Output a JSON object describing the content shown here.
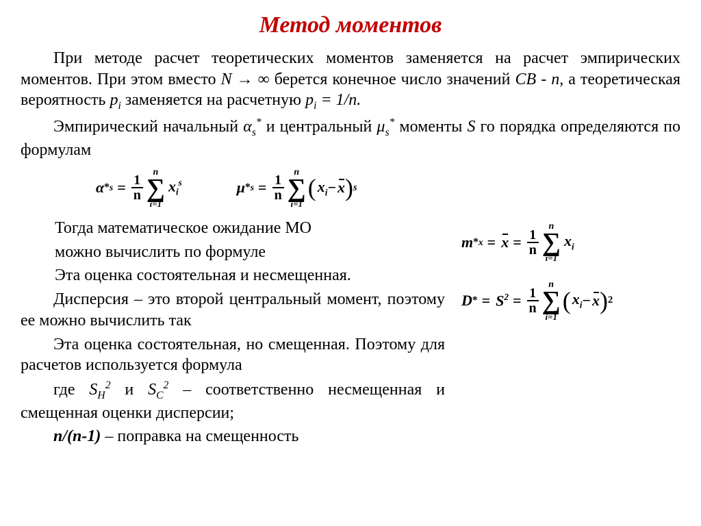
{
  "title": "Метод  моментов",
  "title_color": "#c00000",
  "text_color": "#000000",
  "background_color": "#ffffff",
  "font_family": "Times New Roman",
  "body_fontsize": 24,
  "title_fontsize": 34,
  "paragraphs": {
    "p1_prefix": "При методе расчет теоретических моментов заменяется на расчет эмпирических моментов. При этом вместо ",
    "p1_var_N": "N",
    "p1_arrow_inf": " → ∞ ",
    "p1_mid": "берется конечное число значений ",
    "p1_CB": "СВ  - n",
    "p1_mid2": ", а теоретическая вероятность ",
    "p1_pi": "p",
    "p1_pi_sub": "i",
    "p1_mid3": " заменяется на расчетную ",
    "p1_pi2": "p",
    "p1_pi2_sub": "i",
    "p1_eq": " = 1/n.",
    "p2_prefix": "Эмпирический начальный ",
    "p2_alpha": "α",
    "p2_alpha_sub": "s",
    "p2_alpha_sup": "*",
    "p2_mid": "  и центральный ",
    "p2_mu": "μ",
    "p2_mu_sub": "s",
    "p2_mu_sup": "*",
    "p2_end": " моменты ",
    "p2_S": "S",
    "p2_tail": " го порядка определяются по формулам",
    "p3": "Тогда математическое ожидание МО",
    "p3b": " можно вычислить по формуле",
    "p4": "Эта оценка состоятельная и несмещенная.",
    "p5": "Дисперсия – это второй центральный момент, поэтому ее можно вычислить так",
    "p6": "Эта оценка состоятельная, но смещенная. Поэтому для расчетов используется формула",
    "p7_prefix": "где   ",
    "p7_SH": "S",
    "p7_SH_sub": "Н",
    "p7_SH_sup": "2",
    "p7_and": "   и       ",
    "p7_SC": "S",
    "p7_SC_sub": "С",
    "p7_SC_sup": "2",
    "p7_end": "   –   соответственно несмещенная и смещенная оценки дисперсии;",
    "p8_var": "n/(n-1)",
    "p8_end": " – поправка на смещенность"
  },
  "formulas": {
    "alpha": {
      "lhs_sym": "α",
      "lhs_sub": "s",
      "lhs_star": "*",
      "frac_num": "1",
      "frac_den": "n",
      "sigma_top": "n",
      "sigma_bot": "i=1",
      "term_base": "x",
      "term_sub": "i",
      "term_sup": "s"
    },
    "mu": {
      "lhs_sym": "μ",
      "lhs_sub": "s",
      "lhs_star": "*",
      "frac_num": "1",
      "frac_den": "n",
      "sigma_top": "n",
      "sigma_bot": "i=1",
      "in_base1": "x",
      "in_sub1": "i",
      "minus": " − ",
      "in_base2": "x",
      "outer_sup": "s"
    },
    "mx": {
      "lhs_sym": "m",
      "lhs_sub": "x",
      "lhs_star": "*",
      "mid": "x",
      "frac_num": "1",
      "frac_den": "n",
      "sigma_top": "n",
      "sigma_bot": "i=1",
      "term_base": "x",
      "term_sub": "i"
    },
    "D": {
      "lhs_sym": "D",
      "lhs_star": "*",
      "mid_base": "S",
      "mid_sup": "2",
      "frac_num": "1",
      "frac_den": "n",
      "sigma_top": "n",
      "sigma_bot": "i=1",
      "in_base1": "x",
      "in_sub1": "i",
      "minus": " − ",
      "in_base2": "x",
      "outer_sup": "2"
    }
  }
}
